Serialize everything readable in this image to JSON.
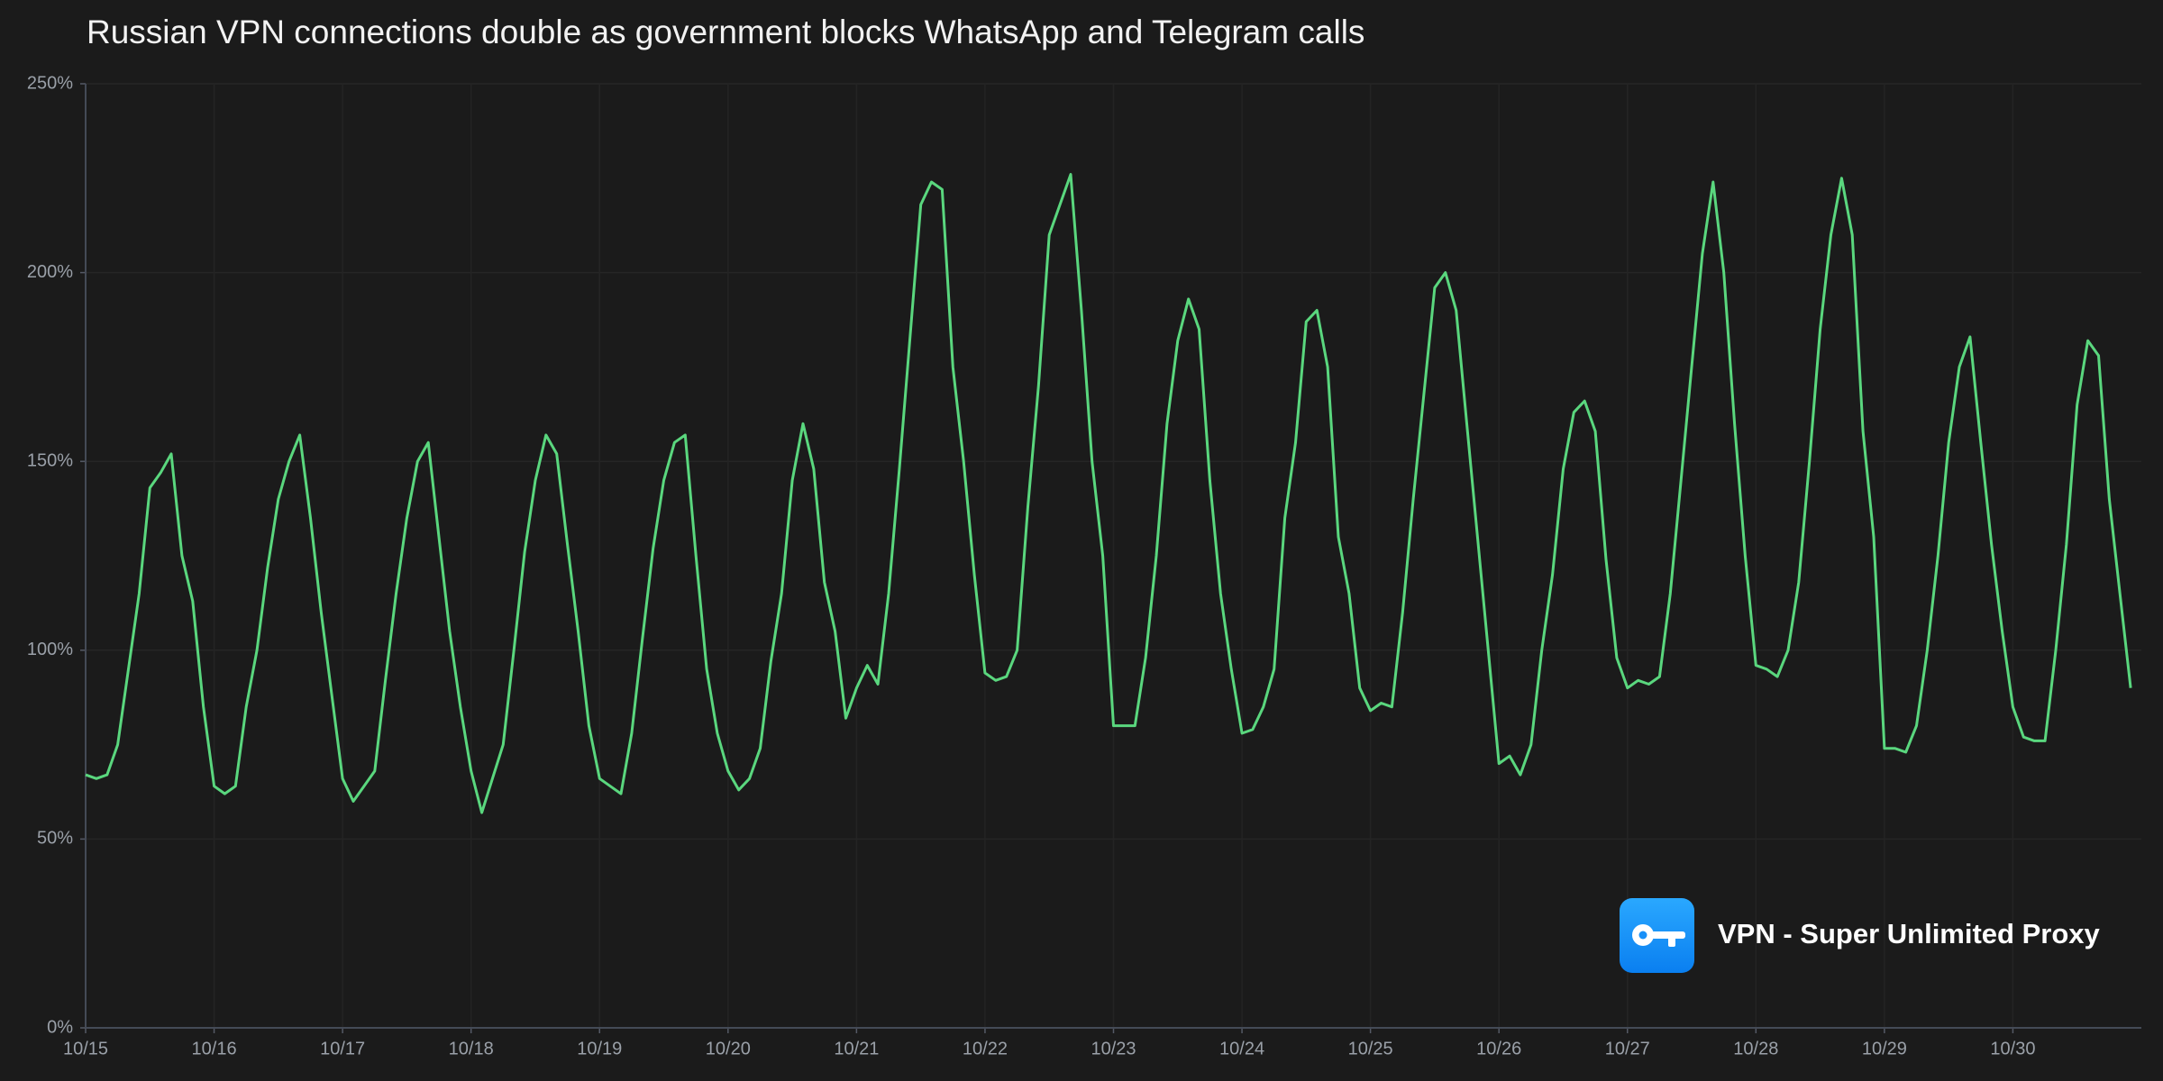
{
  "chart_data": {
    "type": "line",
    "title": "Russian VPN connections double as government blocks WhatsApp and Telegram calls",
    "watermark": "VPN - Super Unlimited Proxy",
    "categories": [
      "10/15",
      null,
      null,
      null,
      null,
      null,
      null,
      null,
      null,
      null,
      null,
      null,
      "10/16",
      null,
      null,
      null,
      null,
      null,
      null,
      null,
      null,
      null,
      null,
      null,
      "10/17",
      null,
      null,
      null,
      null,
      null,
      null,
      null,
      null,
      null,
      null,
      null,
      "10/18",
      null,
      null,
      null,
      null,
      null,
      null,
      null,
      null,
      null,
      null,
      null,
      "10/19",
      null,
      null,
      null,
      null,
      null,
      null,
      null,
      null,
      null,
      null,
      null,
      "10/20",
      null,
      null,
      null,
      null,
      null,
      null,
      null,
      null,
      null,
      null,
      null,
      "10/21",
      null,
      null,
      null,
      null,
      null,
      null,
      null,
      null,
      null,
      null,
      null,
      "10/22",
      null,
      null,
      null,
      null,
      null,
      null,
      null,
      null,
      null,
      null,
      null,
      "10/23",
      null,
      null,
      null,
      null,
      null,
      null,
      null,
      null,
      null,
      null,
      null,
      "10/24",
      null,
      null,
      null,
      null,
      null,
      null,
      null,
      null,
      null,
      null,
      null,
      "10/25",
      null,
      null,
      null,
      null,
      null,
      null,
      null,
      null,
      null,
      null,
      null,
      "10/26",
      null,
      null,
      null,
      null,
      null,
      null,
      null,
      null,
      null,
      null,
      null,
      "10/27",
      null,
      null,
      null,
      null,
      null,
      null,
      null,
      null,
      null,
      null,
      null,
      "10/28",
      null,
      null,
      null,
      null,
      null,
      null,
      null,
      null,
      null,
      null,
      null,
      "10/29",
      null,
      null,
      null,
      null,
      null,
      null,
      null,
      null,
      null,
      null,
      null,
      "10/30",
      null,
      null,
      null,
      null,
      null,
      null,
      null,
      null,
      null,
      null,
      null
    ],
    "series": [
      {
        "name": "VPN connections",
        "color": "#5ad77e",
        "values": [
          67,
          66,
          67,
          75,
          95,
          115,
          143,
          147,
          152,
          125,
          113,
          85,
          64,
          62,
          64,
          85,
          100,
          122,
          140,
          150,
          157,
          135,
          110,
          88,
          66,
          60,
          64,
          68,
          92,
          115,
          135,
          150,
          155,
          130,
          105,
          85,
          68,
          57,
          66,
          75,
          100,
          126,
          145,
          157,
          152,
          128,
          105,
          80,
          66,
          64,
          62,
          78,
          103,
          127,
          145,
          155,
          157,
          125,
          95,
          78,
          68,
          63,
          66,
          74,
          97,
          115,
          145,
          160,
          148,
          118,
          105,
          82,
          90,
          96,
          91,
          115,
          148,
          183,
          218,
          224,
          222,
          175,
          150,
          120,
          94,
          92,
          93,
          100,
          138,
          170,
          210,
          218,
          226,
          190,
          150,
          125,
          80,
          80,
          80,
          98,
          125,
          160,
          182,
          193,
          185,
          145,
          115,
          95,
          78,
          79,
          85,
          95,
          135,
          155,
          187,
          190,
          175,
          130,
          115,
          90,
          84,
          86,
          85,
          110,
          140,
          168,
          196,
          200,
          190,
          160,
          130,
          100,
          70,
          72,
          67,
          75,
          100,
          120,
          148,
          163,
          166,
          158,
          124,
          98,
          90,
          92,
          91,
          93,
          115,
          145,
          175,
          205,
          224,
          200,
          160,
          125,
          96,
          95,
          93,
          100,
          118,
          150,
          185,
          210,
          225,
          210,
          158,
          130,
          74,
          74,
          73,
          80,
          100,
          125,
          155,
          175,
          183,
          155,
          128,
          105,
          85,
          77,
          76,
          76,
          100,
          128,
          165,
          182,
          178,
          140,
          115,
          90
        ]
      }
    ],
    "ylim": [
      0,
      250
    ],
    "yticks": [
      {
        "value": 0,
        "label": "0%"
      },
      {
        "value": 50,
        "label": "50%"
      },
      {
        "value": 100,
        "label": "100%"
      },
      {
        "value": 150,
        "label": "150%"
      },
      {
        "value": 200,
        "label": "200%"
      },
      {
        "value": 250,
        "label": "250%"
      }
    ],
    "grid": true
  }
}
